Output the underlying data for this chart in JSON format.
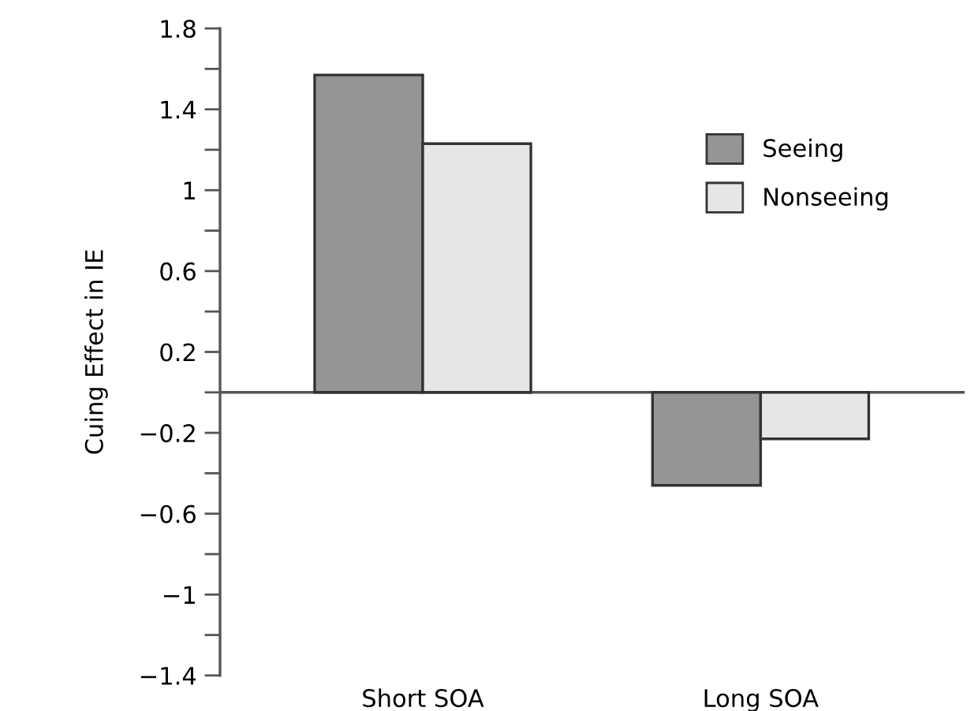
{
  "chart_data": {
    "type": "bar",
    "ylabel": "Cuing Effect in IE",
    "categories": [
      "Short SOA",
      "Long SOA"
    ],
    "series": [
      {
        "name": "Seeing",
        "color": "#959595",
        "values": [
          1.57,
          -0.46
        ]
      },
      {
        "name": "Nonseeing",
        "color": "#e6e6e6",
        "values": [
          1.23,
          -0.23
        ]
      }
    ],
    "ylim": [
      -1.4,
      1.8
    ],
    "yticks": [
      {
        "value": -1.4,
        "label": "−1.4"
      },
      {
        "value": -1.2,
        "label": null
      },
      {
        "value": -1,
        "label": "−1"
      },
      {
        "value": -0.8,
        "label": null
      },
      {
        "value": -0.6,
        "label": "−0.6"
      },
      {
        "value": -0.4,
        "label": null
      },
      {
        "value": -0.2,
        "label": "−0.2"
      },
      {
        "value": 0,
        "label": null
      },
      {
        "value": 0.2,
        "label": "0.2"
      },
      {
        "value": 0.4,
        "label": null
      },
      {
        "value": 0.6,
        "label": "0.6"
      },
      {
        "value": 0.8,
        "label": null
      },
      {
        "value": 1,
        "label": "1"
      },
      {
        "value": 1.2,
        "label": null
      },
      {
        "value": 1.4,
        "label": "1.4"
      },
      {
        "value": 1.6,
        "label": null
      },
      {
        "value": 1.8,
        "label": "1.8"
      }
    ],
    "legend": "top right"
  }
}
